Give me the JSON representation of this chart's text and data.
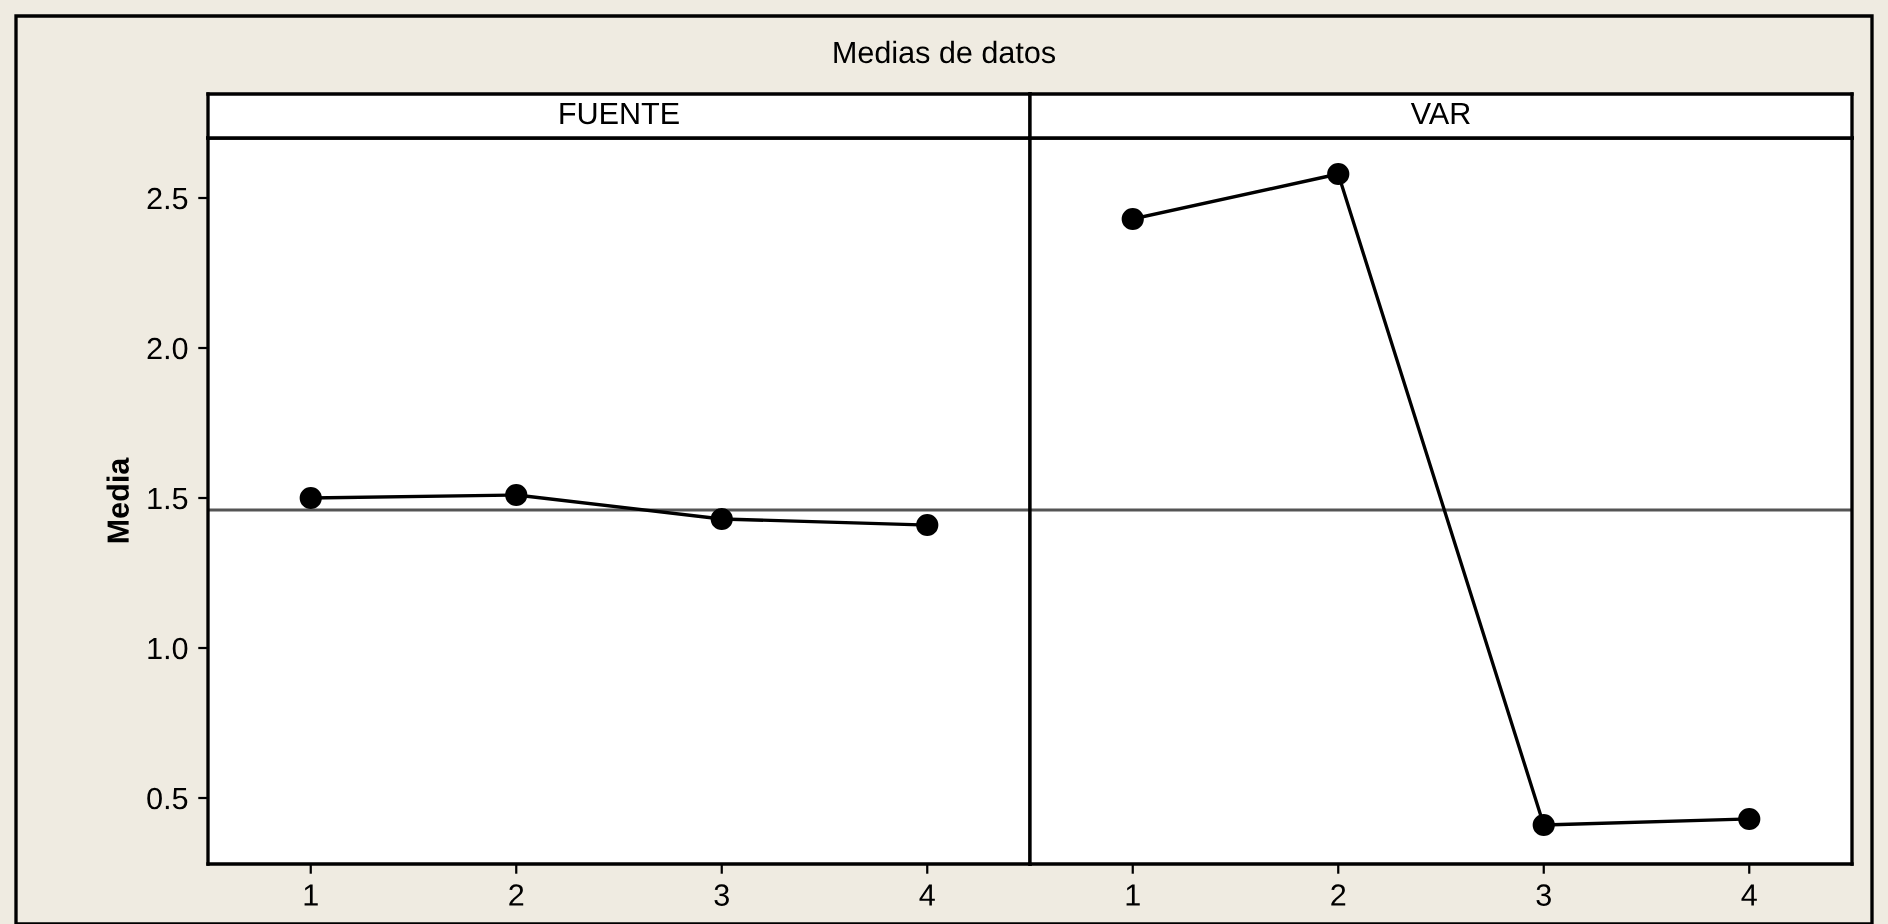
{
  "chart_data": [
    {
      "type": "line",
      "title": "FUENTE",
      "ylabel": "Media",
      "annotations": [
        "Medias de datos"
      ],
      "categories": [
        "1",
        "2",
        "3",
        "4"
      ],
      "series": [
        {
          "color": "#000000",
          "values": [
            1.5,
            1.51,
            1.43,
            1.41
          ]
        }
      ],
      "ylim": [
        0.28,
        2.7
      ],
      "yticks": [
        0.5,
        {
          "value": 1,
          "label": "1.0"
        },
        1.5,
        {
          "value": 2,
          "label": "2.0"
        },
        2.5
      ],
      "ref_lines": [
        {
          "axis": "y",
          "value": 1.46,
          "color": "#555555"
        }
      ],
      "marker": "circle",
      "grid": false
    },
    {
      "type": "line",
      "title": "VAR",
      "categories": [
        "1",
        "2",
        "3",
        "4"
      ],
      "series": [
        {
          "color": "#000000",
          "values": [
            2.43,
            2.58,
            0.41,
            0.43
          ]
        }
      ],
      "ylim": [
        0.28,
        2.7
      ],
      "tick_labels": "x",
      "ref_lines": [
        {
          "axis": "y",
          "value": 1.46,
          "color": "#555555"
        }
      ],
      "marker": "circle",
      "grid": false
    }
  ]
}
